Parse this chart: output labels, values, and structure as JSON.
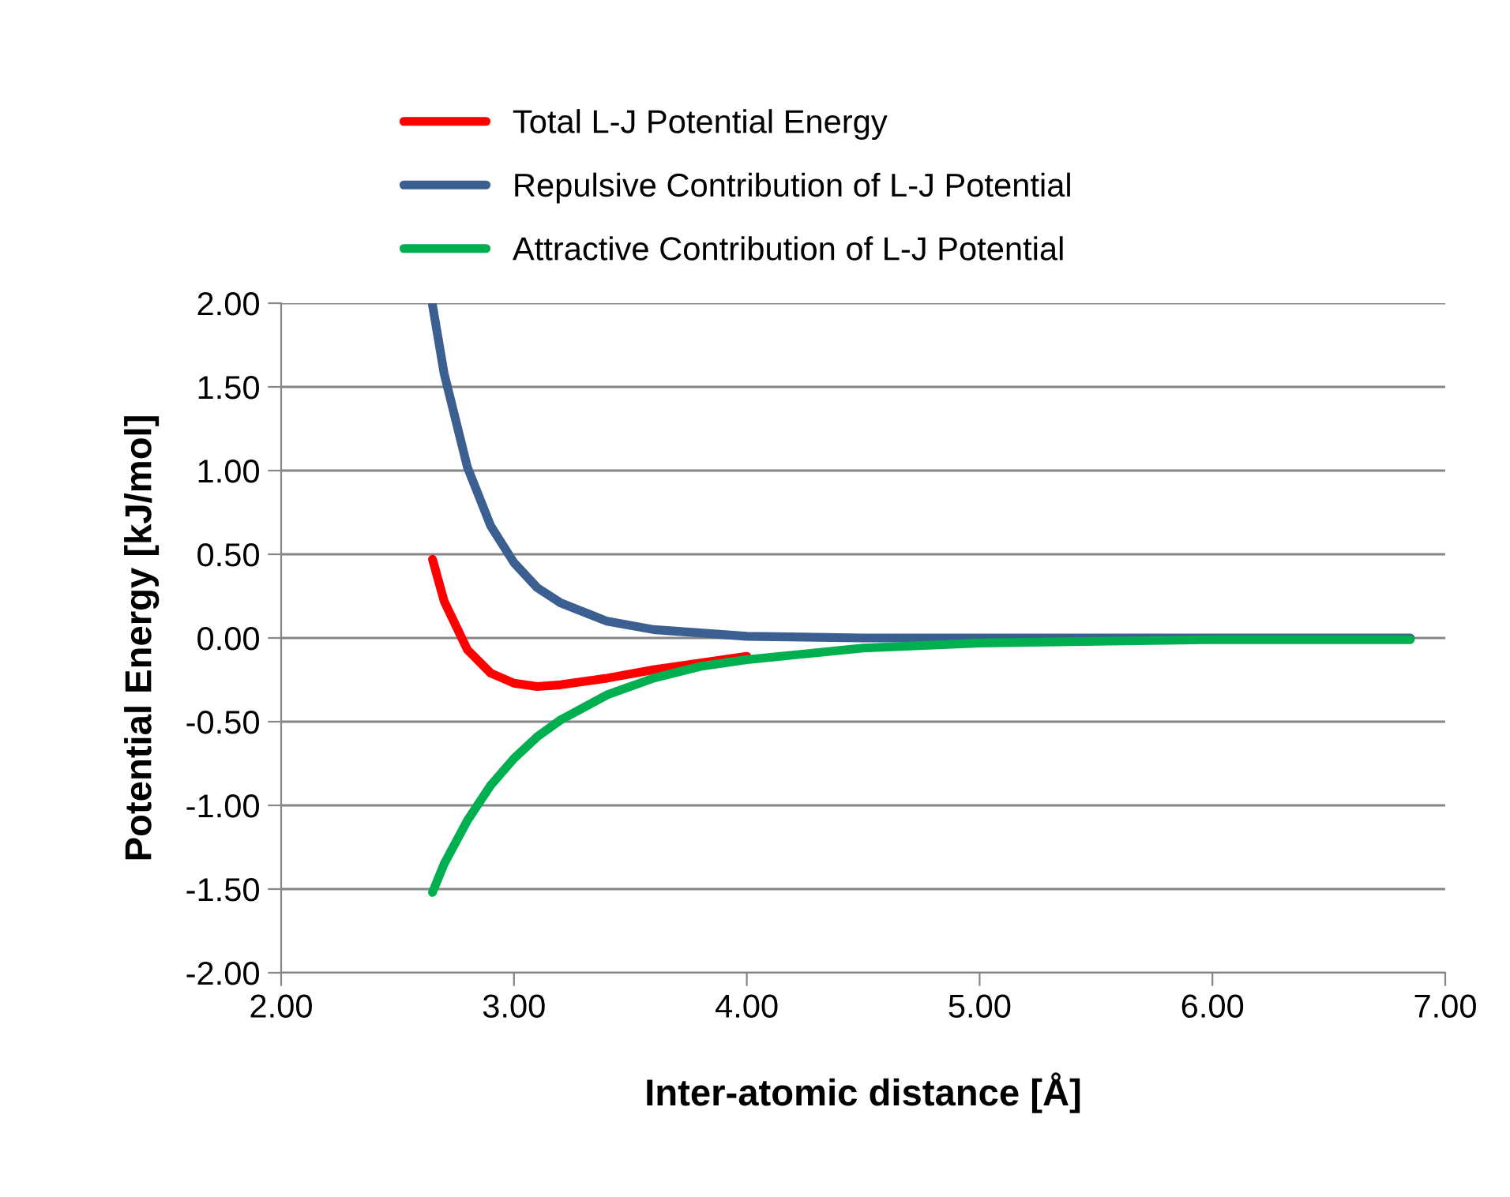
{
  "chart_data": {
    "type": "line",
    "xlabel": "Inter-atomic distance [Å]",
    "ylabel": "Potential Energy [kJ/mol]",
    "x": [
      2.65,
      2.7,
      2.8,
      2.9,
      3.0,
      3.1,
      3.2,
      3.4,
      3.6,
      3.8,
      4.0,
      4.5,
      5.0,
      5.5,
      6.0,
      6.5,
      6.85
    ],
    "series": [
      {
        "name": "Total L-J Potential Energy",
        "color": "#ff0000",
        "values": [
          0.47,
          0.22,
          -0.07,
          -0.21,
          -0.27,
          -0.29,
          -0.28,
          -0.24,
          -0.19,
          -0.15,
          -0.11,
          null,
          null,
          null,
          null,
          null,
          null
        ]
      },
      {
        "name": "Repulsive Contribution of L-J Potential",
        "color": "#3c5f91",
        "values": [
          1.99,
          1.58,
          1.02,
          0.67,
          0.45,
          0.3,
          0.21,
          0.1,
          0.05,
          0.03,
          0.01,
          0.0,
          0.0,
          0.0,
          0.0,
          0.0,
          0.0
        ]
      },
      {
        "name": "Attractive Contribution of L-J Potential",
        "color": "#00b050",
        "values": [
          -1.52,
          -1.35,
          -1.09,
          -0.88,
          -0.72,
          -0.59,
          -0.49,
          -0.34,
          -0.24,
          -0.17,
          -0.13,
          -0.06,
          -0.03,
          -0.02,
          -0.01,
          -0.01,
          -0.01
        ]
      }
    ],
    "xlim": [
      2,
      7
    ],
    "xticks": [
      {
        "value": 2,
        "label": "2.00"
      },
      {
        "value": 3,
        "label": "3.00"
      },
      {
        "value": 4,
        "label": "4.00"
      },
      {
        "value": 5,
        "label": "5.00"
      },
      {
        "value": 6,
        "label": "6.00"
      },
      {
        "value": 7,
        "label": "7.00"
      }
    ],
    "ylim": [
      -2,
      2
    ],
    "yticks": [
      {
        "value": -2,
        "label": "-2.00"
      },
      {
        "value": -1.5,
        "label": "-1.50"
      },
      {
        "value": -1,
        "label": "-1.00"
      },
      {
        "value": -0.5,
        "label": "-0.50"
      },
      {
        "value": 0,
        "label": "0.00"
      },
      {
        "value": 0.5,
        "label": "0.50"
      },
      {
        "value": 1,
        "label": "1.00"
      },
      {
        "value": 1.5,
        "label": "1.50"
      },
      {
        "value": 2,
        "label": "2.00"
      }
    ],
    "grid": "y",
    "legend": "top",
    "marker": "none",
    "line_style": "solid"
  }
}
